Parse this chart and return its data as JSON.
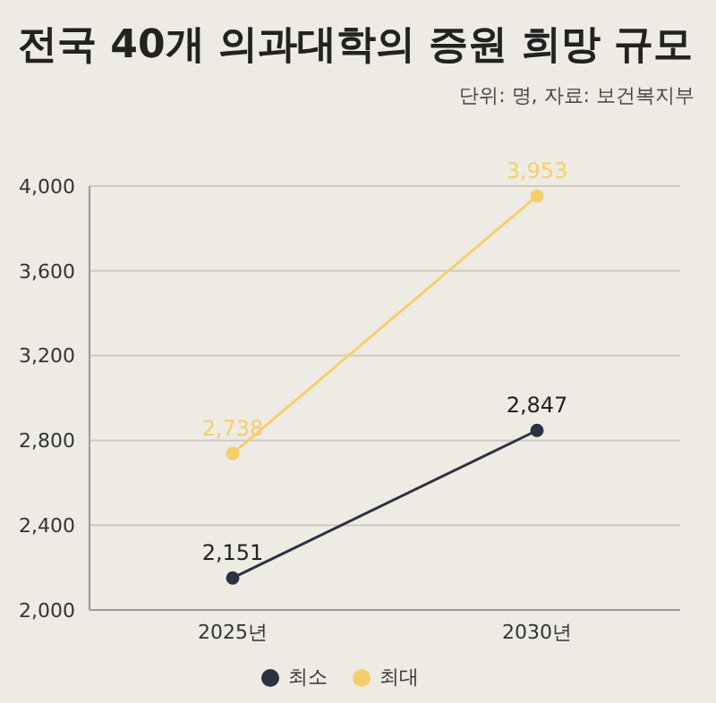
{
  "chart_data": {
    "type": "line",
    "title": "전국 40개 의과대학의 증원 희망 규모",
    "subtitle": "단위: 명, 자료: 보건복지부",
    "categories": [
      "2025년",
      "2030년"
    ],
    "series": [
      {
        "name": "최소",
        "color": "#2d3142",
        "values": [
          2151,
          2847
        ],
        "value_labels": [
          "2,151",
          "2,847"
        ]
      },
      {
        "name": "최대",
        "color": "#f5cf6b",
        "values": [
          2738,
          3953
        ],
        "value_labels": [
          "2,738",
          "3,953"
        ]
      }
    ],
    "ylim": [
      2000,
      4000
    ],
    "yticks": [
      {
        "value": 2000,
        "label": "2,000"
      },
      {
        "value": 2400,
        "label": "2,400"
      },
      {
        "value": 2800,
        "label": "2,800"
      },
      {
        "value": 3200,
        "label": "3,200"
      },
      {
        "value": 3600,
        "label": "3,600"
      },
      {
        "value": 4000,
        "label": "4,000"
      }
    ],
    "grid": "y",
    "legend": "bottom",
    "marker": "circle"
  }
}
